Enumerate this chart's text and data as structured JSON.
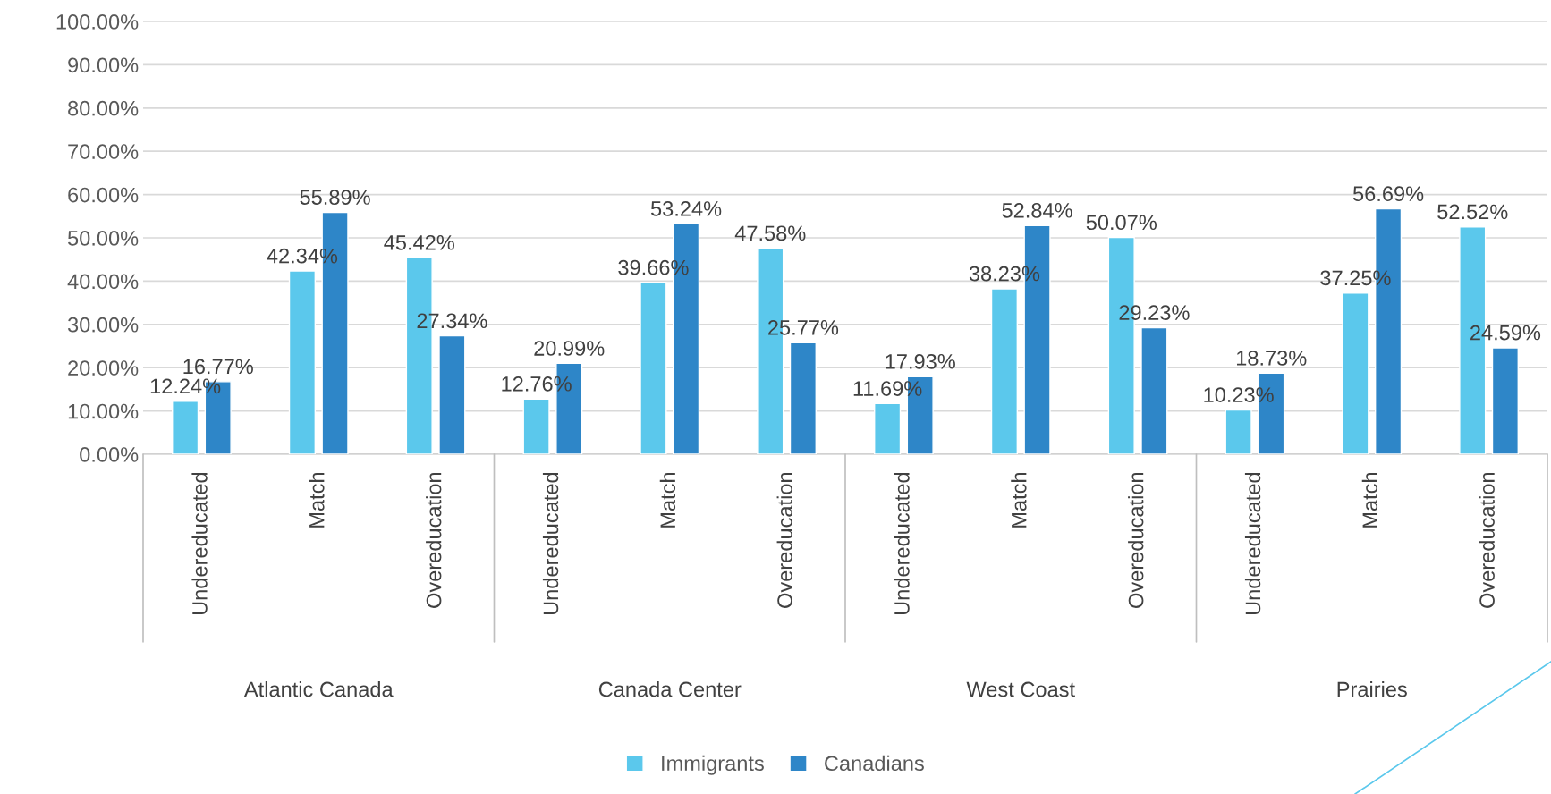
{
  "chart_data": {
    "type": "bar",
    "categories": [
      "Undereducated",
      "Match",
      "Overeducation",
      "Undereducated",
      "Match",
      "Overeducation",
      "Undereducated",
      "Match",
      "Overeducation",
      "Undereducated",
      "Match",
      "Overeducation"
    ],
    "annotations": [
      "Atlantic Canada",
      "Canada Center",
      "West Coast",
      "Prairies"
    ],
    "series": [
      {
        "name": "Immigrants",
        "color": "#5bc8ec",
        "values": [
          12.24,
          42.34,
          45.42,
          12.76,
          39.66,
          47.58,
          11.69,
          38.23,
          50.07,
          10.23,
          37.25,
          52.52
        ],
        "value_labels": [
          "12.24%",
          "42.34%",
          "45.42%",
          "12.76%",
          "39.66%",
          "47.58%",
          "11.69%",
          "38.23%",
          "50.07%",
          "10.23%",
          "37.25%",
          "52.52%"
        ]
      },
      {
        "name": "Canadians",
        "color": "#2e86c8",
        "values": [
          16.77,
          55.89,
          27.34,
          20.99,
          53.24,
          25.77,
          17.93,
          52.84,
          29.23,
          18.73,
          56.69,
          24.59
        ],
        "value_labels": [
          "16.77%",
          "55.89%",
          "27.34%",
          "20.99%",
          "53.24%",
          "25.77%",
          "17.93%",
          "52.84%",
          "29.23%",
          "18.73%",
          "56.69%",
          "24.59%"
        ]
      }
    ],
    "ylim": [
      0,
      100
    ],
    "yticks": [
      {
        "value": 0,
        "label": "0.00%"
      },
      {
        "value": 10,
        "label": "10.00%"
      },
      {
        "value": 20,
        "label": "20.00%"
      },
      {
        "value": 30,
        "label": "30.00%"
      },
      {
        "value": 40,
        "label": "40.00%"
      },
      {
        "value": 50,
        "label": "50.00%"
      },
      {
        "value": 60,
        "label": "60.00%"
      },
      {
        "value": 70,
        "label": "70.00%"
      },
      {
        "value": 80,
        "label": "80.00%"
      },
      {
        "value": 90,
        "label": "90.00%"
      },
      {
        "value": 100,
        "label": "100.00%"
      }
    ],
    "grid": "y",
    "legend": "bottom"
  }
}
